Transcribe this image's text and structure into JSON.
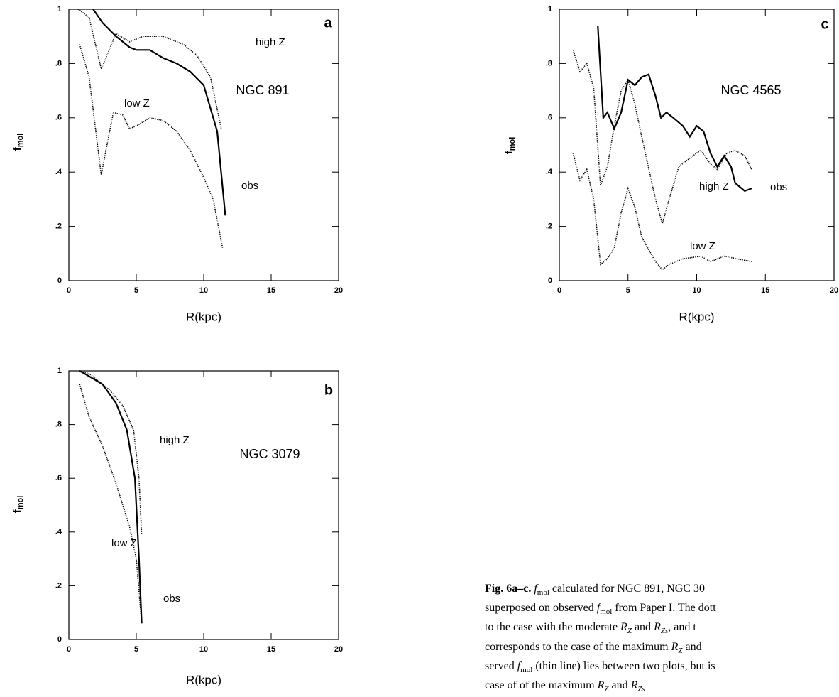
{
  "chart_data": [
    {
      "type": "line",
      "panel": "a",
      "title": "NGC 891",
      "ylabel": "f",
      "ylabel_sub": "mol",
      "xlabel": "R(kpc)",
      "xlim": [
        0,
        20
      ],
      "ylim": [
        0,
        1
      ],
      "xticks": [
        0,
        5,
        10,
        15,
        20
      ],
      "yticks": [
        0,
        {
          "value": 0.2,
          "label": ".2"
        },
        {
          "value": 0.4,
          "label": ".4"
        },
        {
          "value": 0.6,
          "label": ".6"
        },
        {
          "value": 0.8,
          "label": ".8"
        },
        1
      ],
      "series": [
        {
          "name": "high Z",
          "color": "#000000",
          "style": "dotted",
          "x": [
            0.7,
            1.5,
            2.4,
            3.5,
            4.5,
            5.5,
            7,
            8.5,
            9.5,
            10.5,
            11.3
          ],
          "values": [
            1.0,
            0.97,
            0.78,
            0.91,
            0.88,
            0.9,
            0.9,
            0.87,
            0.83,
            0.75,
            0.56
          ]
        },
        {
          "name": "low Z",
          "color": "#000000",
          "style": "dotted",
          "x": [
            0.8,
            1.5,
            2.4,
            3.3,
            4,
            4.5,
            5,
            6,
            7,
            8,
            9,
            10,
            10.7,
            11.4
          ],
          "values": [
            0.87,
            0.75,
            0.39,
            0.62,
            0.61,
            0.56,
            0.57,
            0.6,
            0.59,
            0.55,
            0.48,
            0.38,
            0.3,
            0.12
          ]
        },
        {
          "name": "obs",
          "color": "#000000",
          "style": "solid",
          "x": [
            1.8,
            2.5,
            3.5,
            4.5,
            5,
            6,
            7,
            8,
            9,
            10,
            11,
            11.6
          ],
          "values": [
            1.0,
            0.95,
            0.9,
            0.86,
            0.85,
            0.85,
            0.82,
            0.8,
            0.77,
            0.72,
            0.55,
            0.24
          ]
        }
      ]
    },
    {
      "type": "line",
      "panel": "b",
      "title": "NGC 3079",
      "ylabel": "f",
      "ylabel_sub": "mol",
      "xlabel": "R(kpc)",
      "xlim": [
        0,
        20
      ],
      "ylim": [
        0,
        1
      ],
      "xticks": [
        0,
        5,
        10,
        15,
        20
      ],
      "yticks": [
        0,
        {
          "value": 0.2,
          "label": ".2"
        },
        {
          "value": 0.4,
          "label": ".4"
        },
        {
          "value": 0.6,
          "label": ".6"
        },
        {
          "value": 0.8,
          "label": ".8"
        },
        1
      ],
      "series": [
        {
          "name": "high Z",
          "color": "#000000",
          "style": "dotted",
          "x": [
            0.8,
            1.5,
            2,
            3,
            4,
            4.8,
            5.2,
            5.4
          ],
          "values": [
            1.0,
            0.99,
            0.97,
            0.93,
            0.87,
            0.78,
            0.6,
            0.39
          ]
        },
        {
          "name": "low Z",
          "color": "#000000",
          "style": "dotted",
          "x": [
            0.8,
            1.5,
            2.5,
            3.5,
            4.5,
            5,
            5.4
          ],
          "values": [
            0.95,
            0.83,
            0.72,
            0.58,
            0.42,
            0.3,
            0.06
          ]
        },
        {
          "name": "obs",
          "color": "#000000",
          "style": "solid",
          "x": [
            0.8,
            1.5,
            2.5,
            3.5,
            4.3,
            4.9,
            5.2,
            5.4
          ],
          "values": [
            1.0,
            0.98,
            0.95,
            0.88,
            0.78,
            0.6,
            0.3,
            0.06
          ]
        }
      ]
    },
    {
      "type": "line",
      "panel": "c",
      "title": "NGC 4565",
      "ylabel": "f",
      "ylabel_sub": "mol",
      "xlabel": "R(kpc)",
      "xlim": [
        0,
        20
      ],
      "ylim": [
        0,
        1
      ],
      "xticks": [
        0,
        5,
        10,
        15,
        20
      ],
      "yticks": [
        0,
        {
          "value": 0.2,
          "label": ".2"
        },
        {
          "value": 0.4,
          "label": ".4"
        },
        {
          "value": 0.6,
          "label": ".6"
        },
        {
          "value": 0.8,
          "label": ".8"
        },
        1
      ],
      "series": [
        {
          "name": "high Z",
          "color": "#000000",
          "style": "dotted",
          "x": [
            1,
            1.5,
            2,
            2.5,
            3,
            3.5,
            4,
            4.5,
            5,
            5.5,
            6,
            7,
            7.5,
            8,
            8.7,
            9.2,
            10,
            10.3,
            11,
            11.5,
            12.2,
            12.8,
            13.5,
            14
          ],
          "values": [
            0.85,
            0.77,
            0.8,
            0.71,
            0.35,
            0.42,
            0.57,
            0.7,
            0.74,
            0.65,
            0.53,
            0.3,
            0.21,
            0.3,
            0.42,
            0.44,
            0.47,
            0.48,
            0.43,
            0.41,
            0.47,
            0.48,
            0.46,
            0.41
          ]
        },
        {
          "name": "low Z",
          "color": "#000000",
          "style": "dotted",
          "x": [
            1,
            1.5,
            2,
            2.5,
            3,
            3.5,
            4,
            4.5,
            5,
            5.5,
            6,
            7,
            7.5,
            8,
            9,
            10.3,
            11,
            12,
            13,
            14
          ],
          "values": [
            0.47,
            0.37,
            0.41,
            0.3,
            0.06,
            0.08,
            0.12,
            0.25,
            0.34,
            0.27,
            0.16,
            0.07,
            0.04,
            0.06,
            0.08,
            0.09,
            0.07,
            0.09,
            0.08,
            0.07
          ]
        },
        {
          "name": "obs",
          "color": "#000000",
          "style": "solid",
          "x": [
            2.8,
            3.2,
            3.5,
            4,
            4.5,
            5,
            5.5,
            6,
            6.5,
            7,
            7.4,
            7.8,
            8.3,
            9,
            9.5,
            10,
            10.5,
            11,
            11.5,
            12,
            12.5,
            12.8,
            13.5,
            14
          ],
          "values": [
            0.94,
            0.6,
            0.62,
            0.56,
            0.62,
            0.74,
            0.72,
            0.75,
            0.76,
            0.68,
            0.6,
            0.62,
            0.6,
            0.57,
            0.53,
            0.57,
            0.55,
            0.47,
            0.42,
            0.46,
            0.42,
            0.36,
            0.33,
            0.34
          ]
        }
      ]
    }
  ],
  "caption": {
    "lines": [
      [
        {
          "t": "Fig. 6a–c.",
          "b": true
        },
        {
          "t": " "
        },
        {
          "t": "f",
          "i": true
        },
        {
          "t": "mol",
          "sub": true
        },
        {
          "t": " calculated for NGC 891, NGC 30"
        }
      ],
      [
        {
          "t": "superposed on observed "
        },
        {
          "t": "f",
          "i": true
        },
        {
          "t": "mol",
          "sub": true
        },
        {
          "t": " from Paper I. The dott"
        }
      ],
      [
        {
          "t": "to the case with the moderate "
        },
        {
          "t": "R",
          "i": true
        },
        {
          "t": "Z",
          "sub": true,
          "i": true
        },
        {
          "t": " and "
        },
        {
          "t": "R",
          "i": true
        },
        {
          "t": "Zs",
          "sub": true,
          "i": true
        },
        {
          "t": ", and t"
        }
      ],
      [
        {
          "t": "corresponds to the case of the maximum "
        },
        {
          "t": "R",
          "i": true
        },
        {
          "t": "Z",
          "sub": true,
          "i": true
        },
        {
          "t": " and"
        }
      ],
      [
        {
          "t": "served "
        },
        {
          "t": "f",
          "i": true
        },
        {
          "t": "mol",
          "sub": true
        },
        {
          "t": " (thin line) lies between two plots, but is"
        }
      ],
      [
        {
          "t": "case of of the maximum "
        },
        {
          "t": "R",
          "i": true
        },
        {
          "t": "Z",
          "sub": true,
          "i": true
        },
        {
          "t": " and "
        },
        {
          "t": "R",
          "i": true
        },
        {
          "t": "Zs",
          "sub": true,
          "i": true
        }
      ]
    ]
  }
}
